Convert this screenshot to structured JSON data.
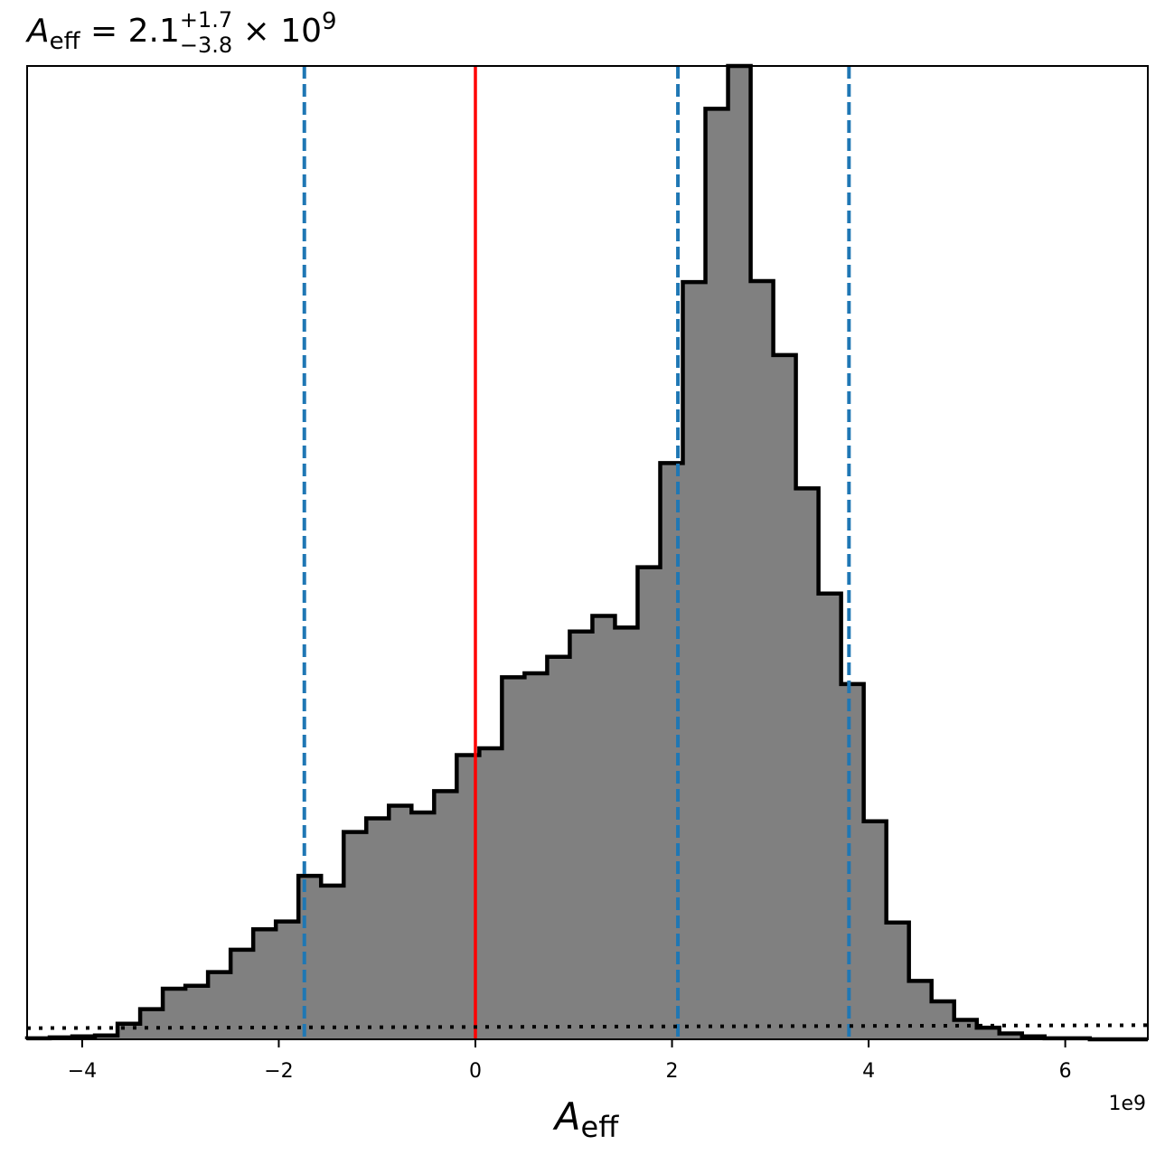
{
  "chart_data": {
    "type": "histogram",
    "title": {
      "symbol": "A",
      "subscript": "eff",
      "equals": " = ",
      "value": "2.1",
      "upper": "+1.7",
      "lower": "−3.8",
      "times": " × ",
      "base": "10",
      "exponent": "9"
    },
    "xlabel": {
      "symbol": "A",
      "subscript": "eff"
    },
    "x_offset_label": "1e9",
    "xlim": [
      -4.56,
      6.84
    ],
    "ylim": [
      0,
      1.0
    ],
    "xticks": [
      -4,
      -2,
      0,
      2,
      4,
      6
    ],
    "xtick_labels": [
      "−4",
      "−2",
      "0",
      "2",
      "4",
      "6"
    ],
    "yticks_shown": false,
    "bin_edges": [
      -4.56,
      -4.33,
      -4.1,
      -3.87,
      -3.64,
      -3.41,
      -3.18,
      -2.95,
      -2.72,
      -2.49,
      -2.26,
      -2.03,
      -1.8,
      -1.57,
      -1.34,
      -1.11,
      -0.88,
      -0.65,
      -0.42,
      -0.19,
      0.04,
      0.27,
      0.5,
      0.73,
      0.96,
      1.19,
      1.42,
      1.65,
      1.88,
      2.11,
      2.34,
      2.57,
      2.8,
      3.03,
      3.26,
      3.49,
      3.72,
      3.95,
      4.18,
      4.41,
      4.64,
      4.87,
      5.1,
      5.33,
      5.56,
      5.79,
      6.02,
      6.25,
      6.48,
      6.71,
      6.84
    ],
    "counts": [
      0.001,
      0.002,
      0.003,
      0.004,
      0.016,
      0.031,
      0.052,
      0.055,
      0.069,
      0.092,
      0.113,
      0.121,
      0.168,
      0.158,
      0.213,
      0.227,
      0.24,
      0.233,
      0.255,
      0.292,
      0.299,
      0.372,
      0.376,
      0.393,
      0.419,
      0.435,
      0.423,
      0.485,
      0.592,
      0.778,
      0.956,
      1.0,
      0.779,
      0.703,
      0.566,
      0.458,
      0.365,
      0.224,
      0.12,
      0.06,
      0.039,
      0.02,
      0.012,
      0.006,
      0.003,
      0.001,
      0.001,
      0.0,
      0.0,
      0.0
    ],
    "fill_color": "#808080",
    "edge_color": "#000000",
    "vlines": [
      {
        "x": -1.74,
        "style": "dashed",
        "color": "#1f77b4"
      },
      {
        "x": 2.06,
        "style": "dashed",
        "color": "#1f77b4"
      },
      {
        "x": 3.8,
        "style": "dashed",
        "color": "#1f77b4"
      },
      {
        "x": 0.0,
        "style": "solid",
        "color": "#ff0000"
      }
    ],
    "prior_curve": {
      "style": "dotted",
      "color": "#000000",
      "x": [
        -4.56,
        6.84
      ],
      "y": [
        0.0115,
        0.0145
      ]
    }
  }
}
